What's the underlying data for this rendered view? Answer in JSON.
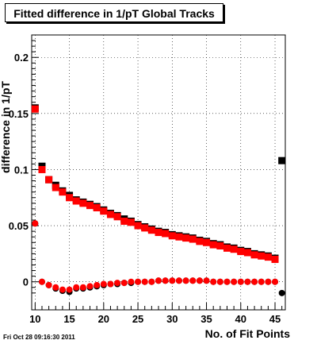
{
  "title": "Fitted difference in 1/pT  Global Tracks",
  "footer": "Fri Oct 28 09:16:30 2011",
  "chart_data": {
    "type": "scatter",
    "title": "Fitted difference in 1/pT  Global Tracks",
    "xlabel": "No. of Fit Points",
    "ylabel": "difference in 1/pT",
    "xlim": [
      9.5,
      46.5
    ],
    "ylim": [
      -0.025,
      0.22
    ],
    "xticks": [
      10,
      15,
      20,
      25,
      30,
      35,
      40,
      45
    ],
    "yticks": [
      0,
      0.05,
      0.1,
      0.15,
      0.2
    ],
    "ytick_labels": [
      "0",
      "0.05",
      "0.1",
      "0.15",
      "0.2"
    ],
    "colors": {
      "black": "#000000",
      "red": "#ff0000"
    },
    "series": [
      {
        "color": "#000000",
        "marker": "square",
        "x": [
          10,
          11,
          12,
          13,
          14,
          15,
          16,
          17,
          18,
          19,
          20,
          21,
          22,
          23,
          24,
          25,
          26,
          27,
          28,
          29,
          30,
          31,
          32,
          33,
          34,
          35,
          36,
          37,
          38,
          39,
          40,
          41,
          42,
          43,
          44,
          45,
          46
        ],
        "y": [
          0.155,
          0.103,
          0.091,
          0.086,
          0.081,
          0.077,
          0.073,
          0.071,
          0.069,
          0.067,
          0.064,
          0.061,
          0.059,
          0.056,
          0.054,
          0.051,
          0.049,
          0.047,
          0.045,
          0.044,
          0.042,
          0.041,
          0.04,
          0.039,
          0.037,
          0.036,
          0.034,
          0.033,
          0.031,
          0.03,
          0.028,
          0.027,
          0.025,
          0.024,
          0.023,
          0.021,
          0.108
        ]
      },
      {
        "color": "#ff0000",
        "marker": "square",
        "x": [
          10,
          11,
          12,
          13,
          14,
          15,
          16,
          17,
          18,
          19,
          20,
          21,
          22,
          23,
          24,
          25,
          26,
          27,
          28,
          29,
          30,
          31,
          32,
          33,
          34,
          35,
          36,
          37,
          38,
          39,
          40,
          41,
          42,
          43,
          44,
          45
        ],
        "y": [
          0.154,
          0.1,
          0.091,
          0.084,
          0.08,
          0.075,
          0.072,
          0.07,
          0.068,
          0.066,
          0.063,
          0.06,
          0.058,
          0.054,
          0.053,
          0.05,
          0.048,
          0.046,
          0.044,
          0.043,
          0.041,
          0.04,
          0.039,
          0.038,
          0.036,
          0.035,
          0.033,
          0.032,
          0.03,
          0.029,
          0.027,
          0.026,
          0.024,
          0.023,
          0.022,
          0.02
        ]
      },
      {
        "color": "#000000",
        "marker": "circle",
        "x": [
          10,
          11,
          12,
          13,
          14,
          15,
          16,
          17,
          18,
          19,
          20,
          21,
          22,
          23,
          24,
          25,
          26,
          27,
          28,
          29,
          30,
          31,
          32,
          33,
          34,
          35,
          36,
          37,
          38,
          39,
          40,
          41,
          42,
          43,
          44,
          45,
          46
        ],
        "y": [
          0.052,
          0.0,
          -0.003,
          -0.006,
          -0.008,
          -0.009,
          -0.006,
          -0.006,
          -0.005,
          -0.004,
          -0.003,
          -0.002,
          -0.002,
          -0.001,
          -0.001,
          0.0,
          0.0,
          0.0,
          0.001,
          0.001,
          0.001,
          0.001,
          0.001,
          0.001,
          0.001,
          0.001,
          0.0,
          0.0,
          0.0,
          0.0,
          0.0,
          0.0,
          0.0,
          0.0,
          0.0,
          0.0,
          -0.01
        ]
      },
      {
        "color": "#ff0000",
        "marker": "circle",
        "x": [
          10,
          11,
          12,
          13,
          14,
          15,
          16,
          17,
          18,
          19,
          20,
          21,
          22,
          23,
          24,
          25,
          26,
          27,
          28,
          29,
          30,
          31,
          32,
          33,
          34,
          35,
          36,
          37,
          38,
          39,
          40,
          41,
          42,
          43,
          44,
          45
        ],
        "y": [
          0.052,
          0.0,
          -0.003,
          -0.005,
          -0.007,
          -0.007,
          -0.005,
          -0.005,
          -0.004,
          -0.003,
          -0.002,
          -0.002,
          -0.001,
          -0.001,
          0.0,
          0.0,
          0.0,
          0.0,
          0.001,
          0.001,
          0.001,
          0.001,
          0.001,
          0.001,
          0.001,
          0.001,
          0.0,
          0.0,
          0.0,
          0.0,
          0.0,
          0.0,
          0.0,
          0.0,
          0.0,
          0.0
        ]
      }
    ]
  }
}
